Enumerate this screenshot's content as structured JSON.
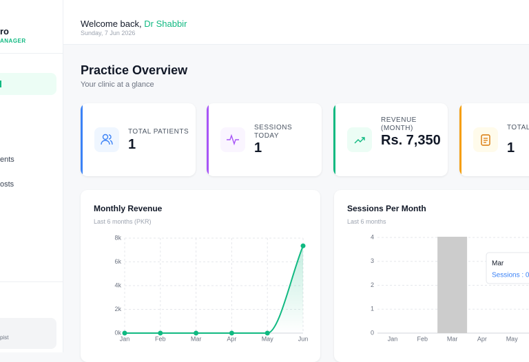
{
  "sidebar": {
    "brand": "ro",
    "role": "ANAGER",
    "nav": [
      "ents",
      "osts"
    ],
    "user_role": "pist"
  },
  "header": {
    "greeting": "Welcome back,",
    "user": "Dr Shabbir",
    "date": "Sunday, 7 Jun 2026"
  },
  "overview": {
    "title": "Practice Overview",
    "subtitle": "Your clinic at a glance"
  },
  "cards": [
    {
      "label": "TOTAL PATIENTS",
      "value": "1"
    },
    {
      "label": "SESSIONS TODAY",
      "value": "1"
    },
    {
      "label": "REVENUE (MONTH)",
      "value": "Rs. 7,350"
    },
    {
      "label": "TOTAL SESSIO",
      "value": "1"
    }
  ],
  "chart_data": [
    {
      "type": "line",
      "title": "Monthly Revenue",
      "subtitle": "Last 6 months (PKR)",
      "categories": [
        "Jan",
        "Feb",
        "Mar",
        "Apr",
        "May",
        "Jun"
      ],
      "values": [
        0,
        0,
        0,
        0,
        0,
        7350
      ],
      "color": "#10b981",
      "ylim": [
        0,
        8000
      ],
      "yticks": [
        {
          "value": 0,
          "label": "0k"
        },
        {
          "value": 2000,
          "label": "2k"
        },
        {
          "value": 4000,
          "label": "4k"
        },
        {
          "value": 6000,
          "label": "6k"
        },
        {
          "value": 8000,
          "label": "8k"
        }
      ],
      "grid": true
    },
    {
      "type": "bar",
      "title": "Sessions Per Month",
      "subtitle": "Last 6 months",
      "categories": [
        "Jan",
        "Feb",
        "Mar",
        "Apr",
        "May"
      ],
      "values": [
        0,
        0,
        0,
        0,
        0
      ],
      "color": "#10b981",
      "ylim": [
        0,
        4
      ],
      "yticks": [
        0,
        1,
        2,
        3,
        4
      ],
      "grid": true,
      "tooltip": {
        "label": "Mar",
        "text": "Sessions : 0"
      }
    }
  ]
}
